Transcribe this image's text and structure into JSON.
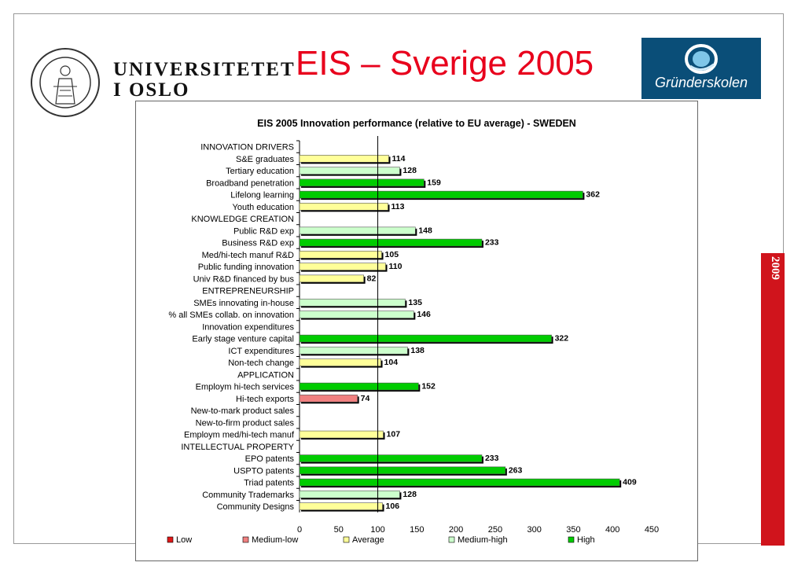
{
  "header": {
    "university_line1": "UNIVERSITETET",
    "university_line2": "I OSLO",
    "slide_title": "EIS – Sverige 2005",
    "logo_text": "Gründerskolen",
    "year_tab": "2009"
  },
  "colors": {
    "title": "#e8001c",
    "logo_bg": "#0a4e78",
    "year_tab": "#d0141c"
  },
  "chart_data": {
    "type": "bar",
    "orientation": "horizontal",
    "title": "EIS 2005 Innovation performance (relative to EU average) - SWEDEN",
    "xlim": [
      0,
      450
    ],
    "xticks": [
      0,
      50,
      100,
      150,
      200,
      250,
      300,
      350,
      400,
      450
    ],
    "reference_line": 100,
    "categories": [
      "INNOVATION DRIVERS",
      "S&E graduates",
      "Tertiary education",
      "Broadband penetration",
      "Lifelong learning",
      "Youth education",
      "KNOWLEDGE CREATION",
      "Public R&D exp",
      "Business R&D exp",
      "Med/hi-tech manuf R&D",
      "Public funding innovation",
      "Univ R&D financed by bus",
      "ENTREPRENEURSHIP",
      "SMEs innovating in-house",
      "% all SMEs collab. on innovation",
      "Innovation expenditures",
      "Early stage venture capital",
      "ICT expenditures",
      "Non-tech change",
      "APPLICATION",
      "Employm hi-tech services",
      "Hi-tech exports",
      "New-to-mark product sales",
      "New-to-firm product sales",
      "Employm med/hi-tech manuf",
      "INTELLECTUAL PROPERTY",
      "EPO patents",
      "USPTO patents",
      "Triad patents",
      "Community Trademarks",
      "Community Designs"
    ],
    "values": [
      null,
      114,
      128,
      159,
      362,
      113,
      null,
      148,
      233,
      105,
      110,
      82,
      null,
      135,
      146,
      null,
      322,
      138,
      104,
      null,
      152,
      74,
      null,
      null,
      107,
      null,
      233,
      263,
      409,
      128,
      106
    ],
    "levels": [
      null,
      "Average",
      "Medium-high",
      "High",
      "High",
      "Average",
      null,
      "Medium-high",
      "High",
      "Average",
      "Average",
      "Average",
      null,
      "Medium-high",
      "Medium-high",
      null,
      "High",
      "Medium-high",
      "Average",
      null,
      "High",
      "Medium-low",
      null,
      null,
      "Average",
      null,
      "High",
      "High",
      "High",
      "Medium-high",
      "Average"
    ],
    "legend": [
      {
        "name": "Low",
        "color": "#e01818"
      },
      {
        "name": "Medium-low",
        "color": "#f08080"
      },
      {
        "name": "Average",
        "color": "#ffff99"
      },
      {
        "name": "Medium-high",
        "color": "#ccffcc"
      },
      {
        "name": "High",
        "color": "#00cc00"
      }
    ],
    "legend_position": "bottom"
  }
}
